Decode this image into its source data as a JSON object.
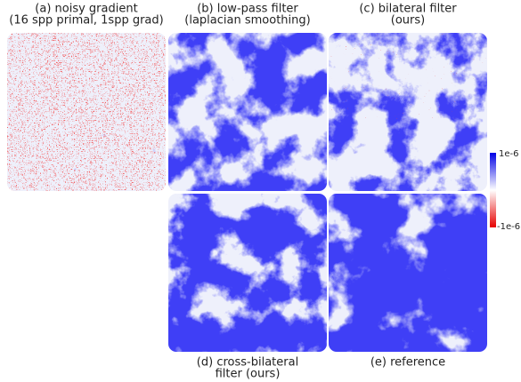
{
  "panels": [
    {
      "caption": [
        "(a) noisy gradient",
        "(16 spp primal, 1spp grad)"
      ]
    },
    {
      "caption": [
        "(b) low-pass filter",
        "(laplacian smoothing)"
      ]
    },
    {
      "caption": [
        "(c) bilateral filter",
        "(ours)"
      ]
    },
    {
      "caption": [
        "(d) cross-bilateral",
        "filter (ours)"
      ]
    },
    {
      "caption": [
        "(e) reference"
      ]
    }
  ],
  "colorbar": {
    "max_label": "1e-6",
    "min_label": "-1e-6"
  }
}
